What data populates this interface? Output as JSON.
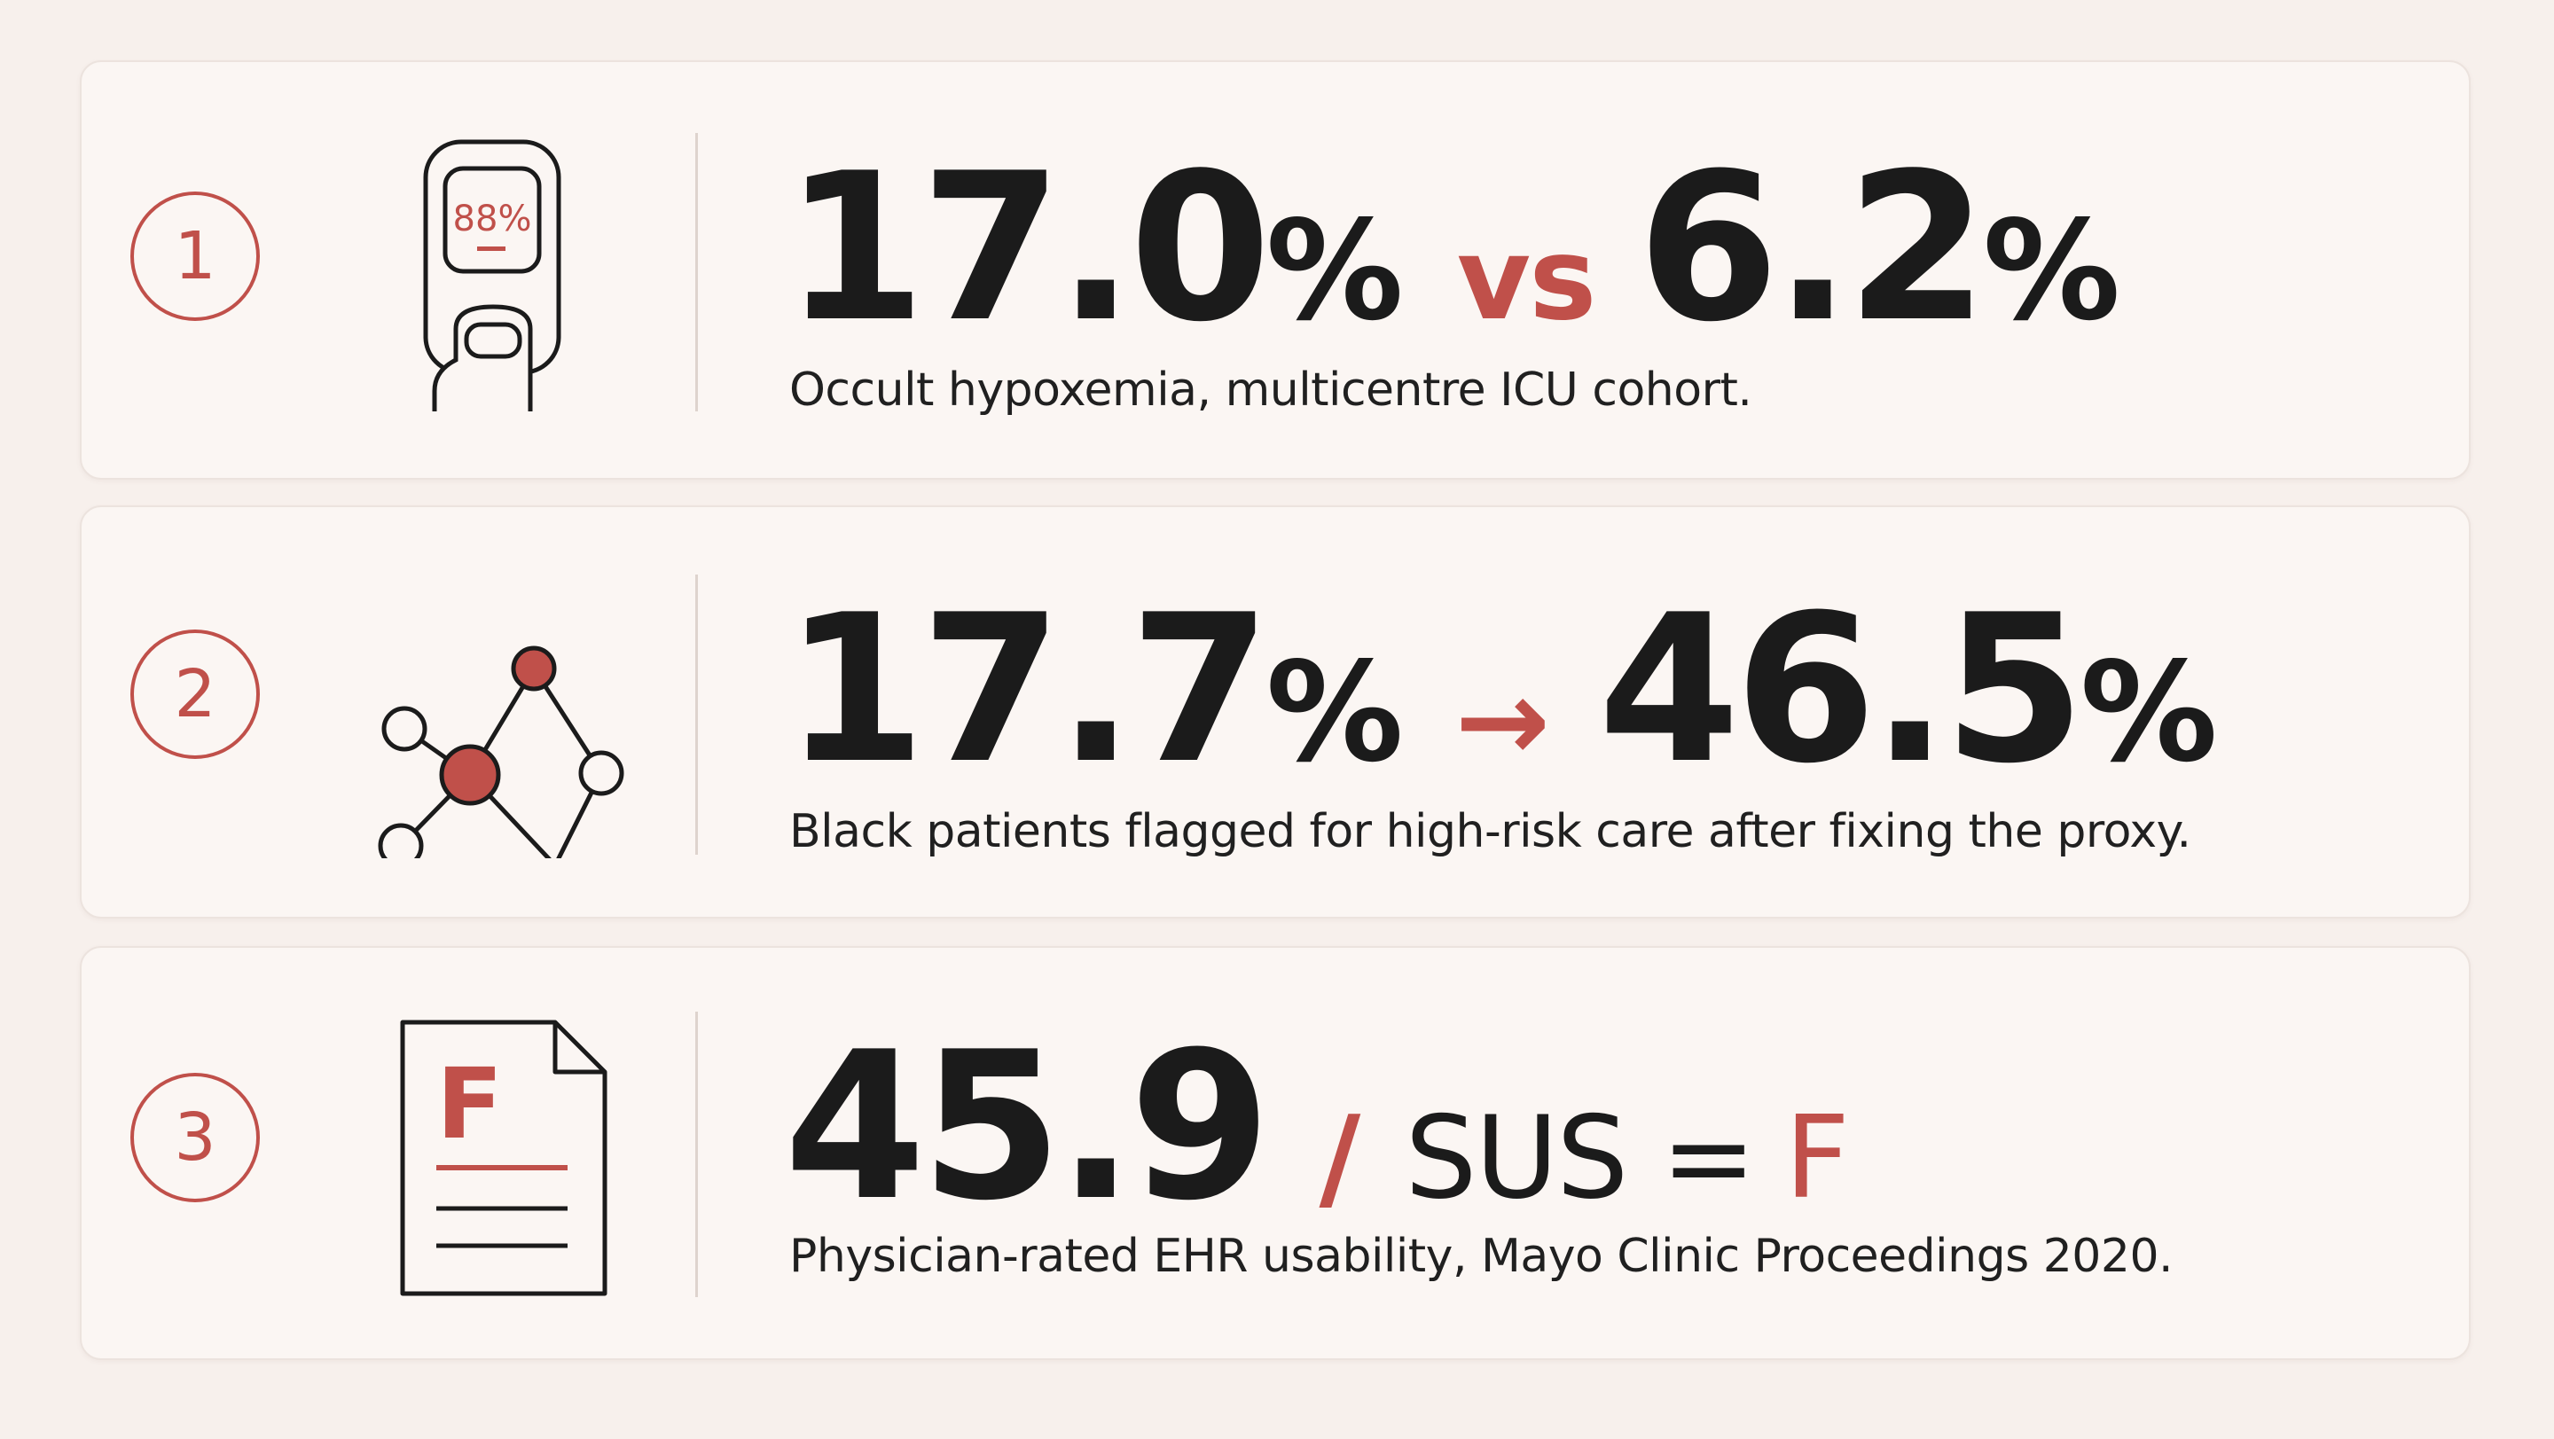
{
  "stats": [
    {
      "number": "1",
      "icon": "pulse-oximeter-icon",
      "oximeter_reading": "88%",
      "value_a": "17.0",
      "value_a_unit": "%",
      "connector": "vs",
      "value_b": "6.2",
      "value_b_unit": "%",
      "caption": "Occult hypoxemia, multicentre ICU cohort."
    },
    {
      "number": "2",
      "icon": "network-graph-icon",
      "value_a": "17.7",
      "value_a_unit": "%",
      "connector": "→",
      "value_b": "46.5",
      "value_b_unit": "%",
      "caption": "Black patients flagged for high-risk care after fixing the proxy."
    },
    {
      "number": "3",
      "icon": "grade-f-document-icon",
      "document_grade": "F",
      "value_a": "45.9",
      "separator": "/",
      "label": "SUS =",
      "grade": "F",
      "caption": "Physician-rated EHR usability, Mayo Clinic Proceedings 2020."
    }
  ],
  "colors": {
    "accent": "#c0504a",
    "text": "#1b1b1b",
    "background": "#f7f0ec",
    "card": "#fbf6f3"
  }
}
